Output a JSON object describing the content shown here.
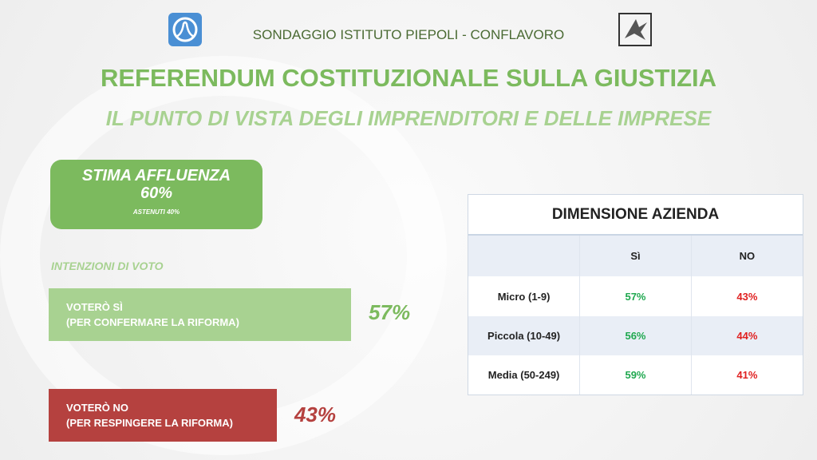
{
  "header": {
    "text": "SONDAGGIO ISTITUTO PIEPOLI - CONFLAVORO",
    "title": "REFERENDUM COSTITUZIONALE SULLA GIUSTIZIA",
    "subtitle": "IL PUNTO DI VISTA DEGLI IMPRENDITORI E DELLE IMPRESE"
  },
  "turnout": {
    "label": "STIMA AFFLUENZA",
    "value": "60%",
    "abstain": "ASTENUTI 40%"
  },
  "colors": {
    "green": "#7cba5e",
    "light_green": "#a8d291",
    "red": "#b5413f",
    "table_yes": "#1fa84f",
    "table_no": "#e02020"
  },
  "chart_data": [
    {
      "type": "bar",
      "title": "INTENZIONI DI VOTO",
      "categories": [
        "VOTERÒ SÌ",
        "VOTERÒ NO"
      ],
      "sublabels": [
        "(PER CONFERMARE LA RIFORMA)",
        "(PER RESPINGERE LA RIFORMA)"
      ],
      "values": [
        57,
        43
      ],
      "value_labels": [
        "57%",
        "43%"
      ],
      "orientation": "horizontal"
    },
    {
      "type": "table",
      "title": "DIMENSIONE AZIENDA",
      "columns": [
        "",
        "Sì",
        "NO"
      ],
      "rows": [
        [
          "Micro (1-9)",
          "57%",
          "43%"
        ],
        [
          "Piccola (10-49)",
          "56%",
          "44%"
        ],
        [
          "Media (50-249)",
          "59%",
          "41%"
        ]
      ]
    }
  ]
}
